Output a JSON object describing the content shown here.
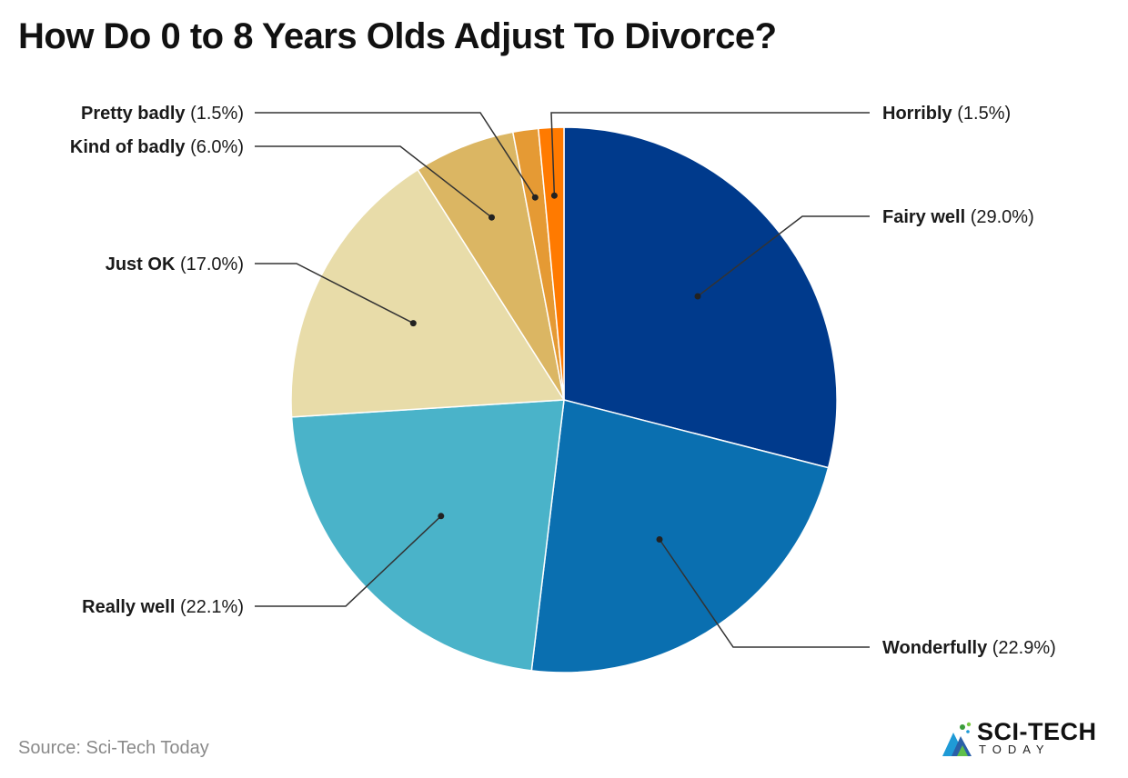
{
  "title": "How Do 0 to 8 Years Olds Adjust To Divorce?",
  "source": "Source: Sci-Tech Today",
  "logo": {
    "main": "SCI-TECH",
    "sub": "TODAY",
    "icon": "sci-tech-logo-icon"
  },
  "chart_data": {
    "type": "pie",
    "title": "How Do 0 to 8 Years Olds Adjust To Divorce?",
    "unit": "%",
    "start": "12 o'clock, clockwise",
    "slices": [
      {
        "label": "Fairy well",
        "value": 29.0,
        "pct": "(29.0%)",
        "color": "#003a8c"
      },
      {
        "label": "Wonderfully",
        "value": 22.9,
        "pct": "(22.9%)",
        "color": "#0a6fb0"
      },
      {
        "label": "Really well",
        "value": 22.1,
        "pct": "(22.1%)",
        "color": "#4ab3c9"
      },
      {
        "label": "Just OK",
        "value": 17.0,
        "pct": "(17.0%)",
        "color": "#e8dca9"
      },
      {
        "label": "Kind of badly",
        "value": 6.0,
        "pct": "(6.0%)",
        "color": "#dbb663"
      },
      {
        "label": "Pretty badly",
        "value": 1.5,
        "pct": "(1.5%)",
        "color": "#e59a34"
      },
      {
        "label": "Horribly",
        "value": 1.5,
        "pct": "(1.5%)",
        "color": "#ff7a00"
      }
    ]
  }
}
